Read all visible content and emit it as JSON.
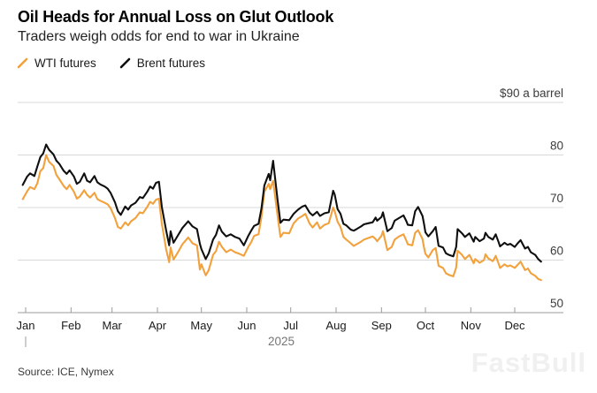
{
  "header": {
    "title": "Oil Heads for Annual Loss on Glut Outlook",
    "subtitle": "Traders weigh odds for end to war in Ukraine"
  },
  "legend": [
    {
      "label": "WTI futures",
      "color": "#F2A13C"
    },
    {
      "label": "Brent futures",
      "color": "#0F0F0F"
    }
  ],
  "footer": {
    "source": "Source: ICE, Nymex",
    "watermark": "FastBull"
  },
  "chart_data": {
    "type": "line",
    "title": "Oil Heads for Annual Loss on Glut Outlook",
    "subtitle": "Traders weigh odds for end to war in Ukraine",
    "x_unit": "day_of_year_2025",
    "x_ticks": [
      {
        "doy": 1,
        "label": "Jan"
      },
      {
        "doy": 32,
        "label": "Feb"
      },
      {
        "doy": 60,
        "label": "Mar"
      },
      {
        "doy": 91,
        "label": "Apr"
      },
      {
        "doy": 121,
        "label": "May"
      },
      {
        "doy": 152,
        "label": "Jun"
      },
      {
        "doy": 182,
        "label": "Jul"
      },
      {
        "doy": 213,
        "label": "Aug"
      },
      {
        "doy": 244,
        "label": "Sep"
      },
      {
        "doy": 274,
        "label": "Oct"
      },
      {
        "doy": 305,
        "label": "Nov"
      },
      {
        "doy": 335,
        "label": "Dec"
      }
    ],
    "year_label": "2025",
    "y_axis": {
      "range": [
        50,
        90
      ],
      "grid": true,
      "ticks": [
        {
          "value": 90,
          "label": "$90 a barrel"
        },
        {
          "value": 80,
          "label": "80"
        },
        {
          "value": 70,
          "label": "70"
        },
        {
          "value": 60,
          "label": "60"
        },
        {
          "value": 50,
          "label": "50"
        }
      ]
    },
    "legend_position": "top-left",
    "series": [
      {
        "name": "WTI futures",
        "color": "#F2A13C",
        "points": [
          [
            -1,
            71.6
          ],
          [
            2,
            73.1
          ],
          [
            4,
            73.9
          ],
          [
            7,
            73.5
          ],
          [
            9,
            74.6
          ],
          [
            11,
            76.9
          ],
          [
            13,
            77.5
          ],
          [
            15,
            80.0
          ],
          [
            17,
            78.7
          ],
          [
            20,
            77.9
          ],
          [
            22,
            76.2
          ],
          [
            24,
            75.4
          ],
          [
            27,
            74.1
          ],
          [
            29,
            73.5
          ],
          [
            31,
            74.3
          ],
          [
            34,
            73.0
          ],
          [
            36,
            71.7
          ],
          [
            38,
            72.1
          ],
          [
            41,
            73.3
          ],
          [
            43,
            72.4
          ],
          [
            45,
            71.9
          ],
          [
            48,
            72.8
          ],
          [
            50,
            71.6
          ],
          [
            52,
            71.3
          ],
          [
            55,
            70.9
          ],
          [
            57,
            70.6
          ],
          [
            59,
            69.9
          ],
          [
            62,
            68.0
          ],
          [
            64,
            66.3
          ],
          [
            66,
            66.0
          ],
          [
            69,
            67.2
          ],
          [
            71,
            66.6
          ],
          [
            73,
            67.4
          ],
          [
            76,
            68.0
          ],
          [
            79,
            69.1
          ],
          [
            81,
            68.9
          ],
          [
            84,
            70.1
          ],
          [
            86,
            71.1
          ],
          [
            88,
            70.7
          ],
          [
            90,
            71.5
          ],
          [
            92,
            71.7
          ],
          [
            94,
            66.9
          ],
          [
            97,
            62.0
          ],
          [
            99,
            59.6
          ],
          [
            100,
            62.4
          ],
          [
            102,
            60.1
          ],
          [
            105,
            61.5
          ],
          [
            108,
            63.0
          ],
          [
            112,
            64.3
          ],
          [
            115,
            63.2
          ],
          [
            118,
            62.8
          ],
          [
            120,
            58.2
          ],
          [
            121,
            59.2
          ],
          [
            124,
            57.1
          ],
          [
            126,
            58.1
          ],
          [
            129,
            61.0
          ],
          [
            131,
            61.7
          ],
          [
            133,
            63.5
          ],
          [
            135,
            62.5
          ],
          [
            138,
            61.5
          ],
          [
            141,
            62.0
          ],
          [
            144,
            61.5
          ],
          [
            147,
            61.2
          ],
          [
            150,
            60.8
          ],
          [
            153,
            62.5
          ],
          [
            155,
            63.4
          ],
          [
            157,
            64.6
          ],
          [
            160,
            64.9
          ],
          [
            162,
            68.2
          ],
          [
            164,
            73.0
          ],
          [
            167,
            74.5
          ],
          [
            168,
            73.5
          ],
          [
            170,
            75.1
          ],
          [
            173,
            68.5
          ],
          [
            175,
            64.4
          ],
          [
            177,
            65.2
          ],
          [
            181,
            65.1
          ],
          [
            184,
            67.0
          ],
          [
            187,
            67.9
          ],
          [
            190,
            68.4
          ],
          [
            192,
            68.8
          ],
          [
            195,
            66.9
          ],
          [
            197,
            66.2
          ],
          [
            200,
            67.2
          ],
          [
            202,
            66.0
          ],
          [
            205,
            66.7
          ],
          [
            208,
            67.0
          ],
          [
            211,
            70.0
          ],
          [
            212,
            69.3
          ],
          [
            214,
            67.3
          ],
          [
            216,
            66.3
          ],
          [
            218,
            64.4
          ],
          [
            220,
            63.9
          ],
          [
            223,
            63.2
          ],
          [
            225,
            62.7
          ],
          [
            227,
            63.0
          ],
          [
            230,
            63.5
          ],
          [
            232,
            63.9
          ],
          [
            235,
            64.2
          ],
          [
            238,
            64.5
          ],
          [
            240,
            64.0
          ],
          [
            241,
            63.6
          ],
          [
            244,
            64.6
          ],
          [
            245,
            65.5
          ],
          [
            248,
            61.9
          ],
          [
            251,
            62.5
          ],
          [
            253,
            63.9
          ],
          [
            256,
            64.5
          ],
          [
            259,
            64.9
          ],
          [
            261,
            63.7
          ],
          [
            262,
            63.0
          ],
          [
            265,
            62.8
          ],
          [
            267,
            65.2
          ],
          [
            269,
            65.7
          ],
          [
            272,
            64.0
          ],
          [
            273,
            62.5
          ],
          [
            274,
            61.2
          ],
          [
            276,
            60.5
          ],
          [
            279,
            61.9
          ],
          [
            281,
            62.3
          ],
          [
            283,
            58.9
          ],
          [
            286,
            58.5
          ],
          [
            288,
            57.5
          ],
          [
            290,
            57.2
          ],
          [
            293,
            56.9
          ],
          [
            295,
            58.6
          ],
          [
            296,
            61.8
          ],
          [
            299,
            61.0
          ],
          [
            301,
            60.2
          ],
          [
            304,
            61.0
          ],
          [
            307,
            59.4
          ],
          [
            308,
            60.2
          ],
          [
            311,
            59.5
          ],
          [
            314,
            60.0
          ],
          [
            315,
            61.1
          ],
          [
            317,
            60.3
          ],
          [
            320,
            59.8
          ],
          [
            322,
            60.8
          ],
          [
            324,
            59.3
          ],
          [
            325,
            58.5
          ],
          [
            328,
            59.2
          ],
          [
            330,
            58.8
          ],
          [
            332,
            59.0
          ],
          [
            335,
            58.5
          ],
          [
            337,
            59.1
          ],
          [
            339,
            59.7
          ],
          [
            342,
            58.1
          ],
          [
            344,
            58.4
          ],
          [
            346,
            57.5
          ],
          [
            349,
            57.0
          ],
          [
            351,
            56.4
          ],
          [
            353,
            56.2
          ]
        ]
      },
      {
        "name": "Brent futures",
        "color": "#0F0F0F",
        "points": [
          [
            -1,
            74.3
          ],
          [
            2,
            75.9
          ],
          [
            4,
            76.5
          ],
          [
            7,
            76.0
          ],
          [
            9,
            77.8
          ],
          [
            11,
            79.6
          ],
          [
            13,
            80.3
          ],
          [
            15,
            82.0
          ],
          [
            17,
            81.0
          ],
          [
            20,
            80.1
          ],
          [
            22,
            78.9
          ],
          [
            24,
            78.3
          ],
          [
            27,
            77.0
          ],
          [
            29,
            76.4
          ],
          [
            31,
            77.1
          ],
          [
            34,
            75.9
          ],
          [
            36,
            74.5
          ],
          [
            38,
            74.9
          ],
          [
            41,
            76.5
          ],
          [
            43,
            75.1
          ],
          [
            45,
            74.8
          ],
          [
            48,
            76.0
          ],
          [
            50,
            74.8
          ],
          [
            52,
            74.4
          ],
          [
            55,
            74.0
          ],
          [
            57,
            73.6
          ],
          [
            59,
            72.8
          ],
          [
            62,
            71.0
          ],
          [
            64,
            69.3
          ],
          [
            66,
            68.6
          ],
          [
            69,
            70.2
          ],
          [
            71,
            69.6
          ],
          [
            73,
            70.4
          ],
          [
            76,
            70.9
          ],
          [
            79,
            72.0
          ],
          [
            81,
            71.8
          ],
          [
            84,
            73.0
          ],
          [
            86,
            74.0
          ],
          [
            88,
            73.6
          ],
          [
            90,
            74.7
          ],
          [
            92,
            74.9
          ],
          [
            94,
            70.1
          ],
          [
            97,
            65.6
          ],
          [
            99,
            62.8
          ],
          [
            100,
            65.5
          ],
          [
            102,
            63.3
          ],
          [
            105,
            64.7
          ],
          [
            108,
            66.1
          ],
          [
            112,
            67.4
          ],
          [
            115,
            66.4
          ],
          [
            118,
            65.9
          ],
          [
            120,
            63.1
          ],
          [
            121,
            62.1
          ],
          [
            124,
            60.2
          ],
          [
            126,
            61.3
          ],
          [
            129,
            63.9
          ],
          [
            131,
            64.8
          ],
          [
            133,
            66.6
          ],
          [
            135,
            65.4
          ],
          [
            138,
            64.5
          ],
          [
            141,
            64.9
          ],
          [
            144,
            64.4
          ],
          [
            147,
            64.1
          ],
          [
            150,
            62.8
          ],
          [
            153,
            64.6
          ],
          [
            155,
            65.6
          ],
          [
            157,
            66.5
          ],
          [
            160,
            66.9
          ],
          [
            162,
            69.8
          ],
          [
            164,
            74.2
          ],
          [
            167,
            76.4
          ],
          [
            168,
            75.2
          ],
          [
            170,
            78.9
          ],
          [
            173,
            71.5
          ],
          [
            175,
            67.1
          ],
          [
            177,
            67.7
          ],
          [
            181,
            67.6
          ],
          [
            184,
            68.8
          ],
          [
            187,
            69.6
          ],
          [
            190,
            70.2
          ],
          [
            192,
            70.4
          ],
          [
            195,
            69.0
          ],
          [
            197,
            68.5
          ],
          [
            200,
            69.2
          ],
          [
            202,
            68.4
          ],
          [
            205,
            68.9
          ],
          [
            208,
            69.1
          ],
          [
            211,
            73.2
          ],
          [
            212,
            72.5
          ],
          [
            214,
            69.7
          ],
          [
            216,
            68.8
          ],
          [
            218,
            66.9
          ],
          [
            220,
            66.6
          ],
          [
            223,
            65.8
          ],
          [
            225,
            65.6
          ],
          [
            227,
            65.9
          ],
          [
            230,
            66.4
          ],
          [
            232,
            66.8
          ],
          [
            235,
            67.0
          ],
          [
            238,
            67.2
          ],
          [
            240,
            68.1
          ],
          [
            241,
            67.5
          ],
          [
            244,
            68.2
          ],
          [
            245,
            69.1
          ],
          [
            248,
            65.5
          ],
          [
            251,
            66.1
          ],
          [
            253,
            67.5
          ],
          [
            256,
            68.0
          ],
          [
            259,
            68.5
          ],
          [
            261,
            67.4
          ],
          [
            262,
            66.7
          ],
          [
            265,
            66.6
          ],
          [
            267,
            69.3
          ],
          [
            269,
            70.1
          ],
          [
            272,
            68.4
          ],
          [
            273,
            67.0
          ],
          [
            274,
            65.3
          ],
          [
            276,
            64.5
          ],
          [
            279,
            65.5
          ],
          [
            281,
            66.3
          ],
          [
            283,
            62.7
          ],
          [
            286,
            62.4
          ],
          [
            288,
            61.3
          ],
          [
            290,
            61.0
          ],
          [
            293,
            60.7
          ],
          [
            295,
            62.5
          ],
          [
            296,
            65.9
          ],
          [
            299,
            65.1
          ],
          [
            301,
            64.4
          ],
          [
            304,
            65.1
          ],
          [
            307,
            63.5
          ],
          [
            308,
            64.4
          ],
          [
            311,
            63.6
          ],
          [
            314,
            64.1
          ],
          [
            315,
            65.2
          ],
          [
            317,
            64.4
          ],
          [
            320,
            63.9
          ],
          [
            322,
            64.9
          ],
          [
            324,
            63.4
          ],
          [
            325,
            62.6
          ],
          [
            328,
            63.3
          ],
          [
            330,
            62.9
          ],
          [
            332,
            63.1
          ],
          [
            335,
            62.5
          ],
          [
            337,
            63.2
          ],
          [
            339,
            63.8
          ],
          [
            342,
            62.2
          ],
          [
            344,
            62.5
          ],
          [
            346,
            61.5
          ],
          [
            349,
            61.0
          ],
          [
            351,
            60.2
          ],
          [
            353,
            59.7
          ]
        ]
      }
    ]
  }
}
